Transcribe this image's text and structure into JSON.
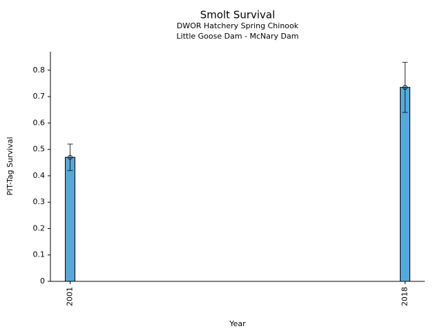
{
  "chart_data": {
    "type": "bar",
    "title": "Smolt Survival",
    "subtitle": [
      "DWOR Hatchery Spring Chinook",
      "Little Goose Dam - McNary Dam"
    ],
    "xlabel": "Year",
    "ylabel": "PIT-Tag Survival",
    "x": [
      2001,
      2018
    ],
    "values": [
      0.47,
      0.735
    ],
    "errors": [
      0.05,
      0.095
    ],
    "color": "#56a8d8",
    "xlim": [
      2000,
      2019
    ],
    "xticks": [
      2001,
      2018
    ],
    "ylim": [
      0,
      0.87
    ],
    "yticks": [
      0,
      0.1,
      0.2,
      0.3,
      0.4,
      0.5,
      0.6,
      0.7,
      0.8
    ]
  }
}
